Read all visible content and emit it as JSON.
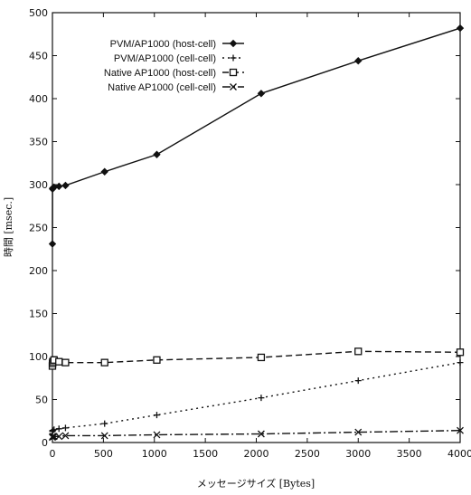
{
  "chart_data": {
    "type": "line",
    "xlabel": "メッセージサイズ [Bytes]",
    "ylabel": "時間 [msec.]",
    "xlim": [
      0,
      4000
    ],
    "ylim": [
      0,
      500
    ],
    "xticks": [
      0,
      500,
      1000,
      1500,
      2000,
      2500,
      3000,
      3500,
      4000
    ],
    "yticks": [
      0,
      50,
      100,
      150,
      200,
      250,
      300,
      350,
      400,
      450,
      500
    ],
    "grid": false,
    "legend_position": "top-left",
    "series": [
      {
        "name": "PVM/AP1000 (host-cell)",
        "style": "solid",
        "marker": "diamond",
        "x": [
          0,
          1,
          4,
          16,
          64,
          128,
          512,
          1024,
          2048,
          3000,
          4000
        ],
        "y": [
          231,
          295,
          296,
          297,
          298,
          299,
          315,
          335,
          406,
          444,
          482
        ]
      },
      {
        "name": "PVM/AP1000 (cell-cell)",
        "style": "dotted",
        "marker": "plus",
        "x": [
          0,
          1,
          4,
          16,
          64,
          128,
          512,
          1024,
          2048,
          3000,
          4000
        ],
        "y": [
          13,
          14,
          14,
          15,
          16,
          17,
          22,
          32,
          52,
          72,
          93
        ]
      },
      {
        "name": "Native AP1000 (host-cell)",
        "style": "dashed",
        "marker": "square",
        "x": [
          0,
          1,
          4,
          16,
          64,
          128,
          512,
          1024,
          2048,
          3000,
          4000
        ],
        "y": [
          89,
          92,
          94,
          96,
          94,
          93,
          93,
          96,
          99,
          106,
          105
        ]
      },
      {
        "name": "Native AP1000 (cell-cell)",
        "style": "dashdot",
        "marker": "x",
        "x": [
          0,
          1,
          4,
          16,
          64,
          128,
          512,
          1024,
          2048,
          3000,
          4000
        ],
        "y": [
          6,
          7,
          7,
          7,
          7,
          8,
          8,
          9,
          10,
          12,
          14
        ]
      }
    ]
  }
}
